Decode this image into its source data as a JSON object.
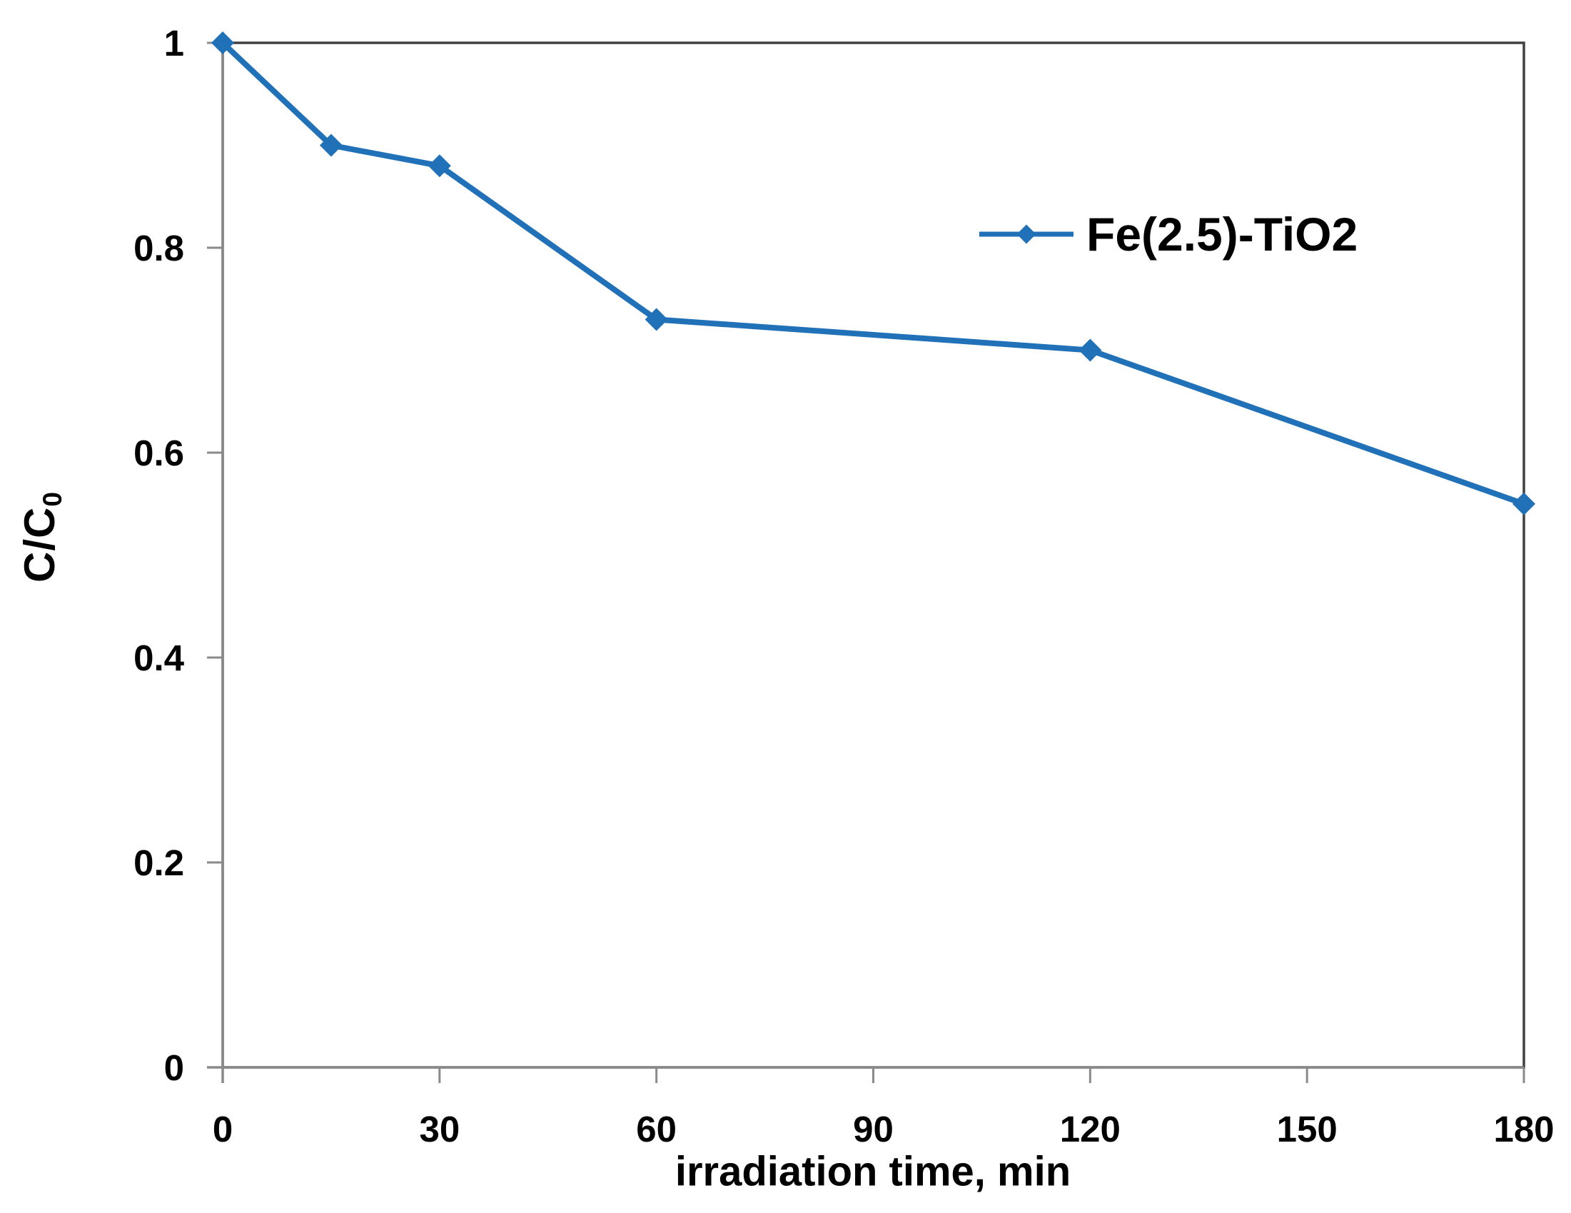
{
  "chart_data": {
    "type": "line",
    "title": "",
    "xlabel": "irradiation time, min",
    "ylabel": "C/C0",
    "ylabel_main": "C/C",
    "ylabel_sub": "0",
    "xlim": [
      0,
      180
    ],
    "ylim": [
      0,
      1
    ],
    "x_ticks": [
      0,
      30,
      60,
      90,
      120,
      150,
      180
    ],
    "y_ticks": [
      0,
      0.2,
      0.4,
      0.6,
      0.8,
      1
    ],
    "y_tick_labels": [
      "0",
      "0.2",
      "0.4",
      "0.6",
      "0.8",
      "1"
    ],
    "grid": false,
    "legend": {
      "position": "inside-top-right",
      "entries": [
        "Fe(2.5)-TiO2"
      ]
    },
    "series": [
      {
        "name": "Fe(2.5)-TiO2",
        "marker": "diamond",
        "color": "#2071B8",
        "x": [
          0,
          15,
          30,
          60,
          120,
          180
        ],
        "y": [
          1.0,
          0.9,
          0.88,
          0.73,
          0.7,
          0.55
        ]
      }
    ],
    "colors": {
      "series_blue": "#2071B8",
      "axis_line": "#8A8A8A",
      "plot_border": "#404040",
      "text": "#000000",
      "background": "#FFFFFF"
    }
  }
}
